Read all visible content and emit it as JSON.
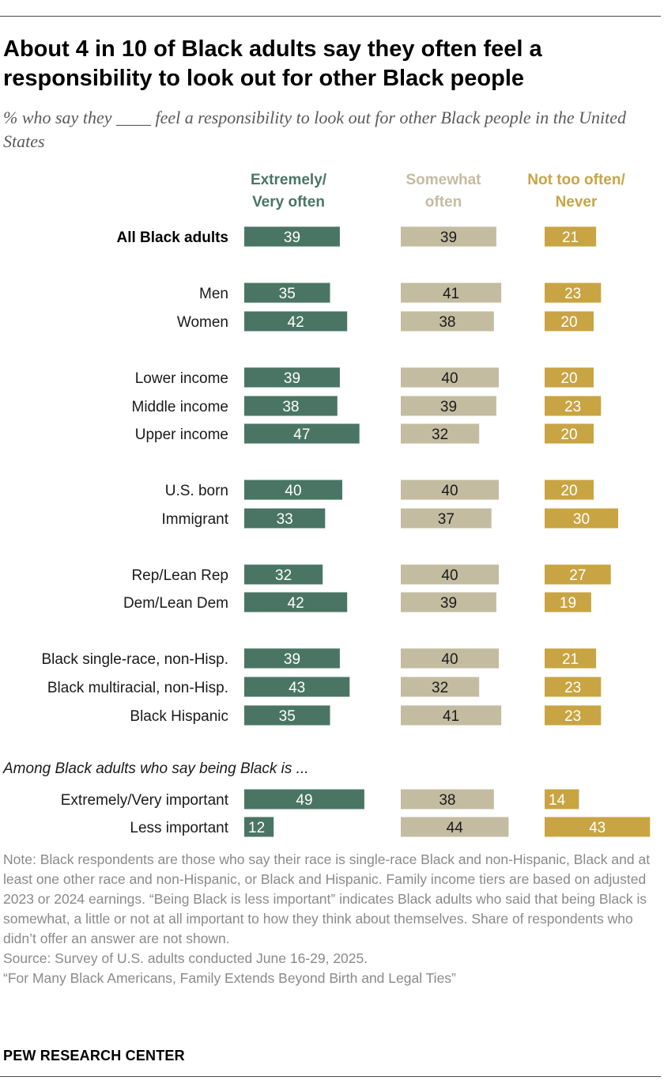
{
  "title": "About 4 in 10 of Black adults say they often feel a responsibility to look out for other Black people",
  "subtitle": "% who say they ____ feel a responsibility to look out for other Black people in the United States",
  "colors": {
    "series1": "#4a7565",
    "series2": "#c4bca1",
    "series3": "#c8a443",
    "bold_label": "#000000",
    "label": "#1a1a1a"
  },
  "chart_data": {
    "type": "bar",
    "orientation": "horizontal",
    "series": [
      {
        "name": "Extremely/ Very often",
        "header_lines": [
          "Extremely/",
          "Very often"
        ],
        "color": "#4a7565"
      },
      {
        "name": "Somewhat often",
        "header_lines": [
          "Somewhat",
          "often"
        ],
        "color": "#c4bca1"
      },
      {
        "name": "Not too often/ Never",
        "header_lines": [
          "Not too often/",
          "Never"
        ],
        "color": "#c8a443"
      }
    ],
    "section_label": "Among Black adults who say being Black is ...",
    "rows": [
      {
        "label": "All Black adults",
        "bold": true,
        "values": [
          39,
          39,
          21
        ]
      },
      {
        "label": "Men",
        "values": [
          35,
          41,
          23
        ]
      },
      {
        "label": "Women",
        "values": [
          42,
          38,
          20
        ]
      },
      {
        "label": "Lower income",
        "values": [
          39,
          40,
          20
        ]
      },
      {
        "label": "Middle income",
        "values": [
          38,
          39,
          23
        ]
      },
      {
        "label": "Upper income",
        "values": [
          47,
          32,
          20
        ]
      },
      {
        "label": "U.S. born",
        "values": [
          40,
          40,
          20
        ]
      },
      {
        "label": "Immigrant",
        "values": [
          33,
          37,
          30
        ]
      },
      {
        "label": "Rep/Lean Rep",
        "values": [
          32,
          40,
          27
        ]
      },
      {
        "label": "Dem/Lean Dem",
        "values": [
          42,
          39,
          19
        ]
      },
      {
        "label": "Black single-race, non-Hisp.",
        "values": [
          39,
          40,
          21
        ]
      },
      {
        "label": "Black multiracial, non-Hisp.",
        "values": [
          43,
          32,
          23
        ]
      },
      {
        "label": "Black Hispanic",
        "values": [
          35,
          41,
          23
        ]
      },
      {
        "label": "Extremely/Very important",
        "values": [
          49,
          38,
          14
        ]
      },
      {
        "label": "Less important",
        "values": [
          12,
          44,
          43
        ]
      }
    ]
  },
  "notes": {
    "note": "Note: Black respondents are those who say their race is single-race Black and non-Hispanic, Black and at least one other race and non-Hispanic, or Black and Hispanic. Family income tiers are based on adjusted 2023 or 2024 earnings. “Being Black is less important” indicates Black adults who said that being Black is somewhat, a little or not at all important to how they think about themselves. Share of respondents who didn’t offer an answer are not shown.",
    "source": "Source: Survey of U.S. adults conducted June 16-29, 2025.",
    "report": "“For Many Black Americans, Family Extends Beyond Birth and Legal Ties”"
  },
  "brand": "PEW RESEARCH CENTER"
}
